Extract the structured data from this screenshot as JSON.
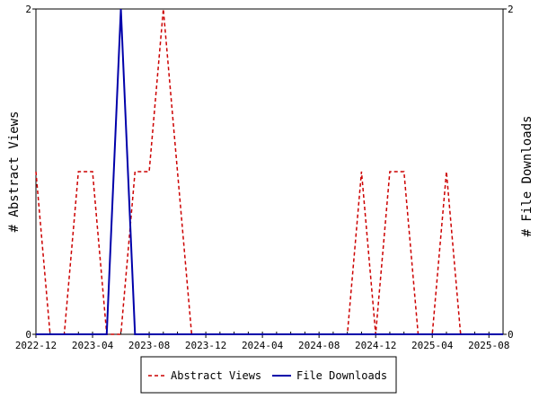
{
  "chart_data": {
    "type": "line",
    "title": "",
    "xlabel": "",
    "ylabel_left": "# Abstract Views",
    "ylabel_right": "# File Downloads",
    "y_left_range": [
      0,
      2
    ],
    "y_right_range": [
      0,
      2
    ],
    "y_left_tick_labels": [
      "0",
      "2"
    ],
    "y_right_tick_labels": [
      "0",
      "2"
    ],
    "x": [
      "2022-12",
      "2023-01",
      "2023-02",
      "2023-03",
      "2023-04",
      "2023-05",
      "2023-06",
      "2023-07",
      "2023-08",
      "2023-09",
      "2023-10",
      "2023-11",
      "2023-12",
      "2024-01",
      "2024-02",
      "2024-03",
      "2024-04",
      "2024-05",
      "2024-06",
      "2024-07",
      "2024-08",
      "2024-09",
      "2024-10",
      "2024-11",
      "2024-12",
      "2025-01",
      "2025-02",
      "2025-03",
      "2025-04",
      "2025-05",
      "2025-06",
      "2025-07",
      "2025-08",
      "2025-09"
    ],
    "x_tick_labels": [
      "2022-12",
      "2023-04",
      "2023-08",
      "2023-12",
      "2024-04",
      "2024-08",
      "2024-12",
      "2025-04",
      "2025-08"
    ],
    "grid": false,
    "legend_position": "bottom",
    "series": [
      {
        "name": "Abstract Views",
        "axis": "left",
        "color": "#cc0000",
        "style": "dashed",
        "values": [
          1,
          0,
          0,
          1,
          1,
          0,
          0,
          1,
          1,
          2,
          1,
          0,
          0,
          0,
          0,
          0,
          0,
          0,
          0,
          0,
          0,
          0,
          0,
          1,
          0,
          1,
          1,
          0,
          0,
          1,
          0,
          0,
          0,
          0
        ]
      },
      {
        "name": "File Downloads",
        "axis": "right",
        "color": "#0000aa",
        "style": "solid",
        "values": [
          0,
          0,
          0,
          0,
          0,
          0,
          2,
          0,
          0,
          0,
          0,
          0,
          0,
          0,
          0,
          0,
          0,
          0,
          0,
          0,
          0,
          0,
          0,
          0,
          0,
          0,
          0,
          0,
          0,
          0,
          0,
          0,
          0,
          0
        ]
      }
    ]
  }
}
